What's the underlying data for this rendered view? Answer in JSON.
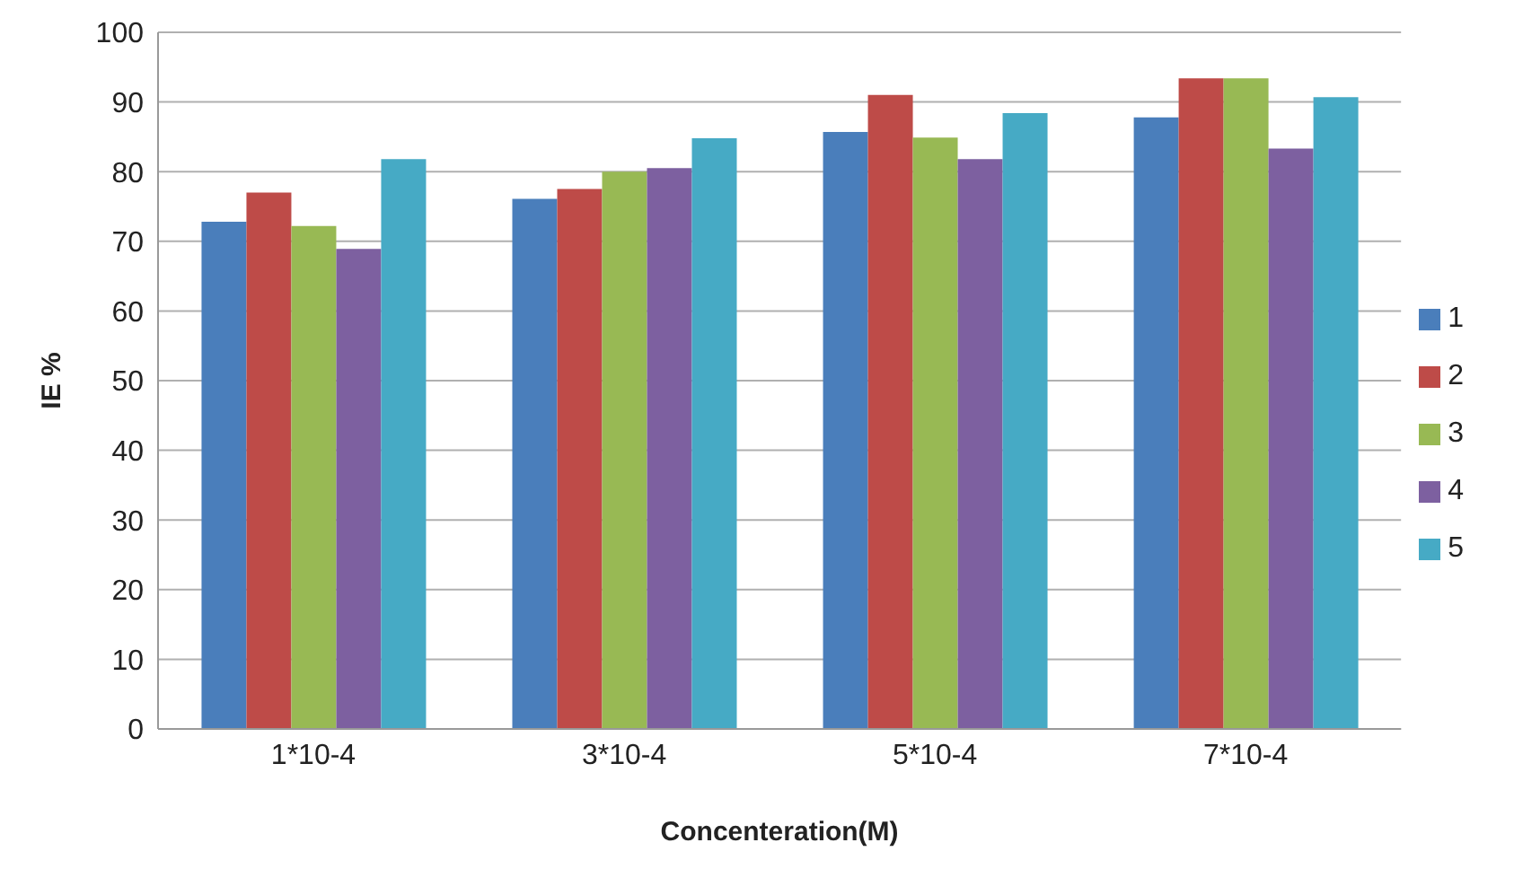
{
  "chart_data": {
    "type": "bar",
    "xlabel": "Concenteration(M)",
    "ylabel": "IE %",
    "categories": [
      "1*10-4",
      "3*10-4",
      "5*10-4",
      "7*10-4"
    ],
    "series": [
      {
        "name": "1",
        "color": "#4a7ebb",
        "values": [
          72.8,
          76.1,
          85.7,
          87.8
        ]
      },
      {
        "name": "2",
        "color": "#be4b48",
        "values": [
          77.0,
          77.5,
          91.0,
          93.4
        ]
      },
      {
        "name": "3",
        "color": "#98b954",
        "values": [
          72.2,
          80.0,
          84.9,
          93.4
        ]
      },
      {
        "name": "4",
        "color": "#7d60a0",
        "values": [
          68.9,
          80.5,
          81.8,
          83.3
        ]
      },
      {
        "name": "5",
        "color": "#46aac5",
        "values": [
          81.8,
          84.8,
          88.4,
          90.7
        ]
      }
    ],
    "ylim": [
      0,
      100
    ],
    "yticks": [
      0,
      10,
      20,
      30,
      40,
      50,
      60,
      70,
      80,
      90,
      100
    ],
    "grid": "y",
    "legend": "right"
  }
}
